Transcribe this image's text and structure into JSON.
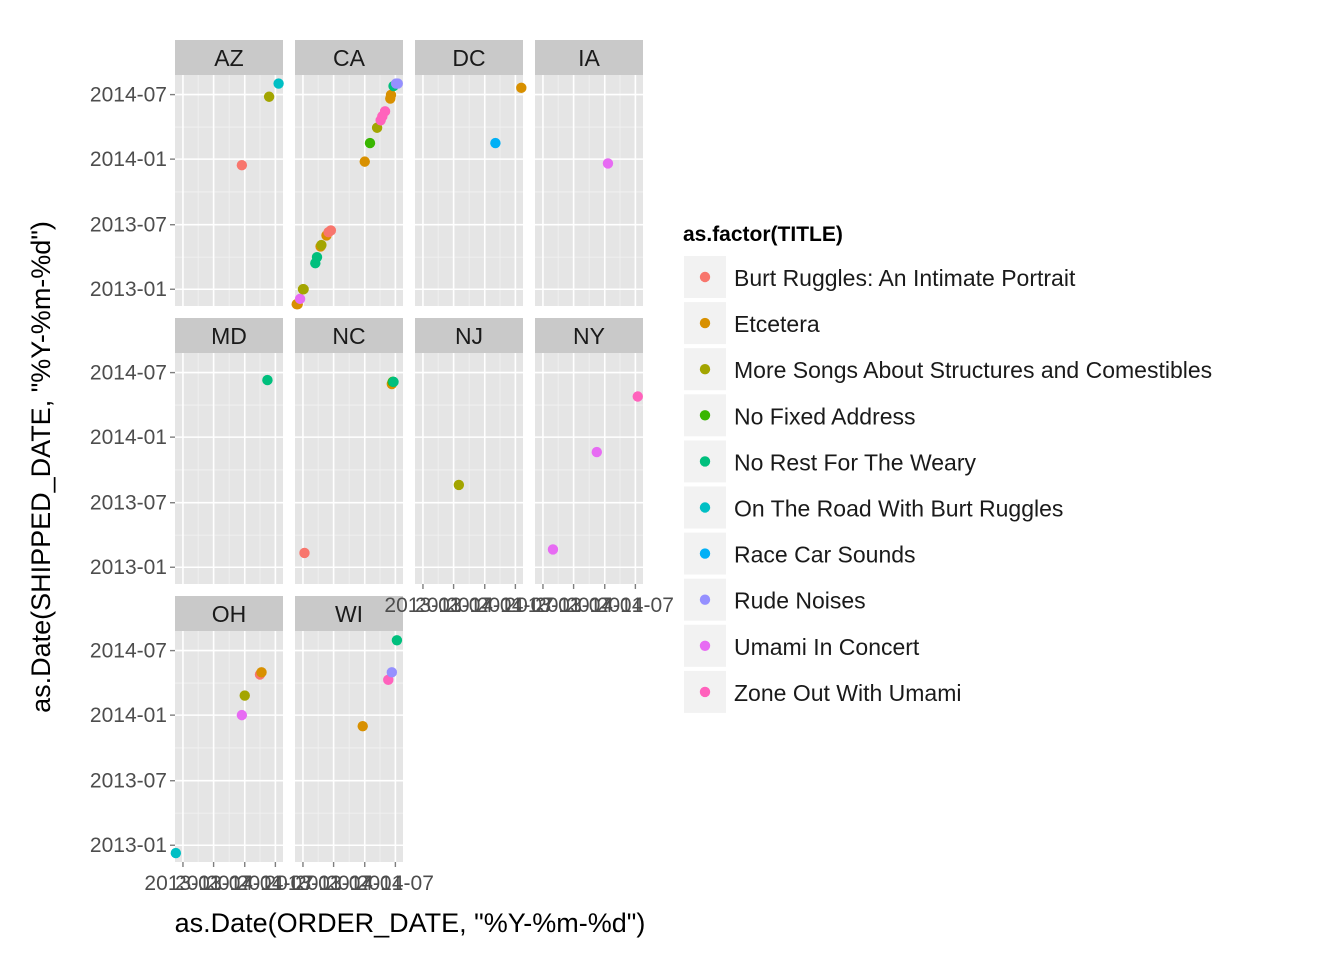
{
  "chart_data": {
    "type": "scatter",
    "xlabel": "as.Date(ORDER_DATE, \"%Y-%m-%d\")",
    "ylabel": "as.Date(SHIPPED_DATE, \"%Y-%m-%d\")",
    "x_ticks": [
      "2013-01",
      "2013-07",
      "2014-01",
      "2014-07"
    ],
    "y_ticks": [
      "2013-01",
      "2013-07",
      "2014-01",
      "2014-07"
    ],
    "xlim": [
      "2012-11-15",
      "2014-08-15"
    ],
    "ylim": [
      "2012-11-15",
      "2014-08-25"
    ],
    "grid": true,
    "legend": {
      "title": "as.factor(TITLE)",
      "position": "right",
      "entries": [
        {
          "name": "Burt Ruggles: An Intimate Portrait",
          "color": "#F8766D"
        },
        {
          "name": "Etcetera",
          "color": "#D89000"
        },
        {
          "name": "More Songs About Structures and Comestibles",
          "color": "#A3A500"
        },
        {
          "name": "No Fixed Address",
          "color": "#39B600"
        },
        {
          "name": "No Rest For The Weary",
          "color": "#00BF7D"
        },
        {
          "name": "On The Road With Burt Ruggles",
          "color": "#00BFC4"
        },
        {
          "name": "Race Car Sounds",
          "color": "#00B0F6"
        },
        {
          "name": "Rude Noises",
          "color": "#9590FF"
        },
        {
          "name": "Umami In Concert",
          "color": "#E76BF3"
        },
        {
          "name": "Zone Out With Umami",
          "color": "#FF62BC"
        }
      ]
    },
    "facets": [
      {
        "label": "AZ",
        "points": [
          {
            "x": "2013-12-15",
            "y": "2013-12-15",
            "series": 0
          },
          {
            "x": "2014-05-25",
            "y": "2014-06-25",
            "series": 2
          },
          {
            "x": "2014-07-20",
            "y": "2014-08-01",
            "series": 5
          }
        ]
      },
      {
        "label": "CA",
        "points": [
          {
            "x": "2012-11-25",
            "y": "2012-11-20",
            "series": 1
          },
          {
            "x": "2012-12-01",
            "y": "2012-11-20",
            "series": 1
          },
          {
            "x": "2012-12-15",
            "y": "2012-12-05",
            "series": 8
          },
          {
            "x": "2013-01-01",
            "y": "2013-01-01",
            "series": 2
          },
          {
            "x": "2013-01-05",
            "y": "2013-01-01",
            "series": 2
          },
          {
            "x": "2013-03-15",
            "y": "2013-03-15",
            "series": 4
          },
          {
            "x": "2013-03-25",
            "y": "2013-04-01",
            "series": 4
          },
          {
            "x": "2013-04-15",
            "y": "2013-05-01",
            "series": 1
          },
          {
            "x": "2013-04-20",
            "y": "2013-05-05",
            "series": 2
          },
          {
            "x": "2013-05-20",
            "y": "2013-06-01",
            "series": 1
          },
          {
            "x": "2013-06-01",
            "y": "2013-06-10",
            "series": 0
          },
          {
            "x": "2013-06-15",
            "y": "2013-06-15",
            "series": 0
          },
          {
            "x": "2014-01-01",
            "y": "2013-12-25",
            "series": 1
          },
          {
            "x": "2014-02-01",
            "y": "2014-02-15",
            "series": 3
          },
          {
            "x": "2014-03-15",
            "y": "2014-03-30",
            "series": 2
          },
          {
            "x": "2014-04-05",
            "y": "2014-04-20",
            "series": 9
          },
          {
            "x": "2014-04-15",
            "y": "2014-05-01",
            "series": 9
          },
          {
            "x": "2014-05-01",
            "y": "2014-05-15",
            "series": 9
          },
          {
            "x": "2014-06-01",
            "y": "2014-06-20",
            "series": 1
          },
          {
            "x": "2014-06-05",
            "y": "2014-06-30",
            "series": 1
          },
          {
            "x": "2014-06-20",
            "y": "2014-07-25",
            "series": 4
          },
          {
            "x": "2014-07-05",
            "y": "2014-08-01",
            "series": 7
          },
          {
            "x": "2014-07-15",
            "y": "2014-08-01",
            "series": 7
          }
        ]
      },
      {
        "label": "DC",
        "points": [
          {
            "x": "2014-03-05",
            "y": "2014-02-15",
            "series": 6
          },
          {
            "x": "2014-08-05",
            "y": "2014-07-20",
            "series": 1
          }
        ]
      },
      {
        "label": "IA",
        "points": [
          {
            "x": "2014-01-20",
            "y": "2013-12-20",
            "series": 8
          }
        ]
      },
      {
        "label": "MD",
        "points": [
          {
            "x": "2014-05-15",
            "y": "2014-06-10",
            "series": 4
          }
        ]
      },
      {
        "label": "NC",
        "points": [
          {
            "x": "2013-01-10",
            "y": "2013-02-10",
            "series": 0
          },
          {
            "x": "2014-06-10",
            "y": "2014-05-30",
            "series": 1
          },
          {
            "x": "2014-06-15",
            "y": "2014-06-05",
            "series": 3
          },
          {
            "x": "2014-06-20",
            "y": "2014-06-05",
            "series": 4
          }
        ]
      },
      {
        "label": "NJ",
        "points": [
          {
            "x": "2013-08-01",
            "y": "2013-08-20",
            "series": 2
          }
        ]
      },
      {
        "label": "NY",
        "points": [
          {
            "x": "2013-03-01",
            "y": "2013-02-20",
            "series": 8
          },
          {
            "x": "2013-11-15",
            "y": "2013-11-20",
            "series": 8
          },
          {
            "x": "2014-07-15",
            "y": "2014-04-25",
            "series": 9
          }
        ]
      },
      {
        "label": "OH",
        "points": [
          {
            "x": "2012-11-20",
            "y": "2012-12-10",
            "series": 5
          },
          {
            "x": "2013-12-15",
            "y": "2014-01-01",
            "series": 8
          },
          {
            "x": "2014-01-01",
            "y": "2014-02-25",
            "series": 2
          },
          {
            "x": "2014-04-01",
            "y": "2014-04-25",
            "series": 0
          },
          {
            "x": "2014-04-10",
            "y": "2014-05-01",
            "series": 1
          }
        ]
      },
      {
        "label": "WI",
        "points": [
          {
            "x": "2013-12-20",
            "y": "2013-12-01",
            "series": 1
          },
          {
            "x": "2014-05-20",
            "y": "2014-04-10",
            "series": 9
          },
          {
            "x": "2014-06-10",
            "y": "2014-05-01",
            "series": 7
          },
          {
            "x": "2014-07-10",
            "y": "2014-07-30",
            "series": 4
          }
        ]
      }
    ]
  }
}
